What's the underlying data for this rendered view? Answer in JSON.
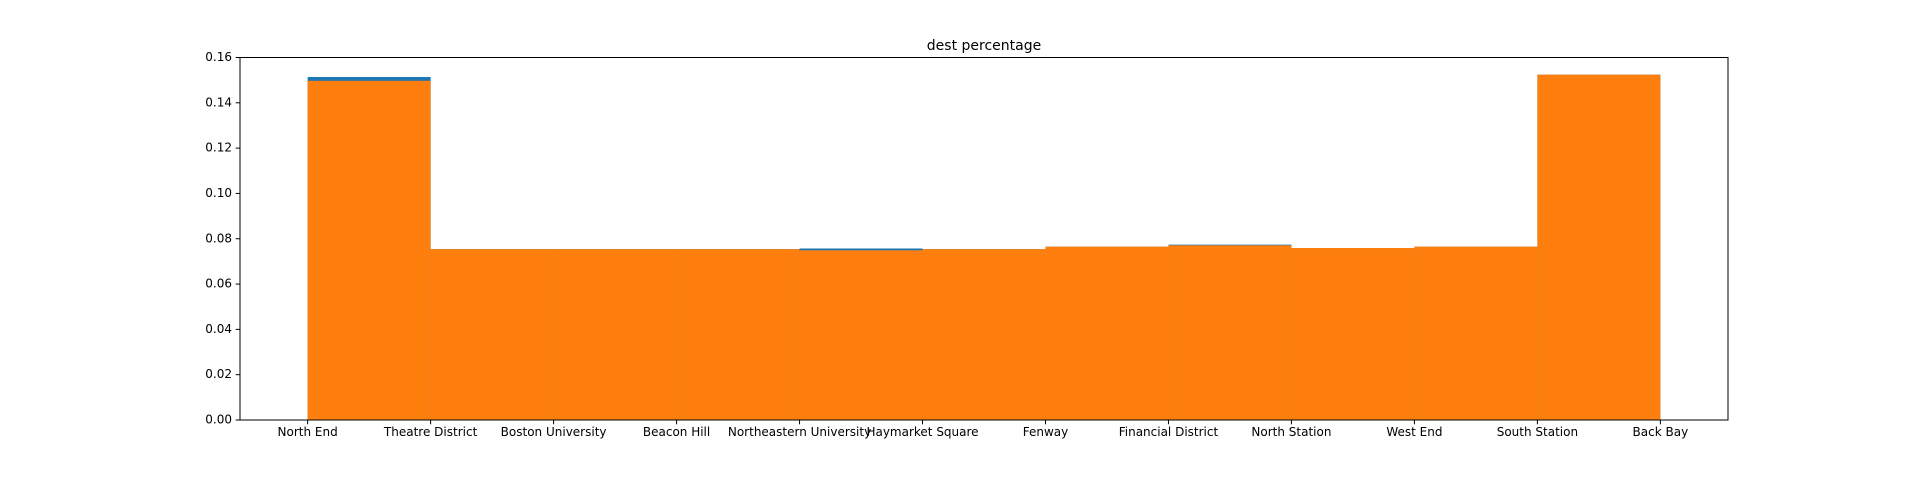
{
  "chart_data": {
    "type": "histogram",
    "title": "dest percentage",
    "bins": [
      0,
      1,
      2,
      3,
      4,
      5,
      6,
      7,
      8,
      9,
      10,
      11
    ],
    "series": [
      {
        "color": "#1f77b4",
        "values": [
          0.1514,
          0.0754,
          0.0754,
          0.0754,
          0.0757,
          0.0754,
          0.0765,
          0.0774,
          0.0759,
          0.0765,
          0.1524
        ]
      },
      {
        "color": "#ff7f0e",
        "values": [
          0.1497,
          0.0754,
          0.0754,
          0.0754,
          0.0749,
          0.0754,
          0.0765,
          0.0771,
          0.0759,
          0.0765,
          0.1524
        ]
      }
    ],
    "xlim": [
      -0.55,
      11.55
    ],
    "xticks": [
      {
        "value": 0,
        "label": "North End"
      },
      {
        "value": 1,
        "label": "Theatre District"
      },
      {
        "value": 2,
        "label": "Boston University"
      },
      {
        "value": 3,
        "label": "Beacon Hill"
      },
      {
        "value": 4,
        "label": "Northeastern University"
      },
      {
        "value": 5,
        "label": "Haymarket Square"
      },
      {
        "value": 6,
        "label": "Fenway"
      },
      {
        "value": 7,
        "label": "Financial District"
      },
      {
        "value": 8,
        "label": "North Station"
      },
      {
        "value": 9,
        "label": "West End"
      },
      {
        "value": 10,
        "label": "South Station"
      },
      {
        "value": 11,
        "label": "Back Bay"
      }
    ],
    "ylim": [
      0,
      0.16
    ],
    "yticks": [
      {
        "value": 0,
        "label": "0.00"
      },
      {
        "value": 0.02,
        "label": "0.02"
      },
      {
        "value": 0.04,
        "label": "0.04"
      },
      {
        "value": 0.06,
        "label": "0.06"
      },
      {
        "value": 0.08,
        "label": "0.08"
      },
      {
        "value": 0.1,
        "label": "0.10"
      },
      {
        "value": 0.12,
        "label": "0.12"
      },
      {
        "value": 0.14,
        "label": "0.14"
      },
      {
        "value": 0.16,
        "label": "0.16"
      }
    ],
    "grid": false
  }
}
